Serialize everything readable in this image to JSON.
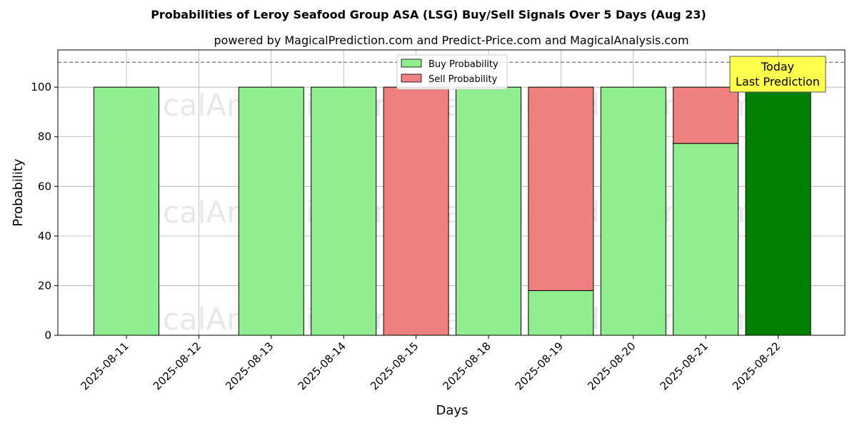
{
  "chart_data": {
    "type": "bar",
    "stacked": true,
    "title": "Probabilities of Leroy Seafood Group ASA (LSG) Buy/Sell Signals Over 5 Days (Aug 23)",
    "subtitle": "powered by MagicalPrediction.com and Predict-Price.com and MagicalAnalysis.com",
    "xlabel": "Days",
    "ylabel": "Probability",
    "ylim": [
      0,
      115
    ],
    "yticks": [
      0,
      20,
      40,
      60,
      80,
      100
    ],
    "grid": true,
    "legend_placement": "top-center",
    "reference_line": {
      "y": 110,
      "style": "dashed"
    },
    "categories": [
      "2025-08-11",
      "2025-08-12",
      "2025-08-13",
      "2025-08-14",
      "2025-08-15",
      "2025-08-18",
      "2025-08-19",
      "2025-08-20",
      "2025-08-21",
      "2025-08-22"
    ],
    "series": [
      {
        "name": "Buy Probability",
        "color": "#90ee90",
        "values": [
          100,
          0,
          100,
          100,
          0,
          100,
          18,
          100,
          77.3,
          100
        ]
      },
      {
        "name": "Sell Probability",
        "color": "#f08080",
        "values": [
          0,
          0,
          0,
          0,
          100,
          0,
          82,
          0,
          22.7,
          0
        ]
      }
    ],
    "highlight": {
      "category": "2025-08-22",
      "color": "#008000"
    },
    "annotation": {
      "line1": "Today",
      "line2": "Last Prediction",
      "background": "#ffff4d"
    },
    "watermarks": [
      "MagicalAnalysis.com",
      "MagicalPrediction.com"
    ]
  }
}
